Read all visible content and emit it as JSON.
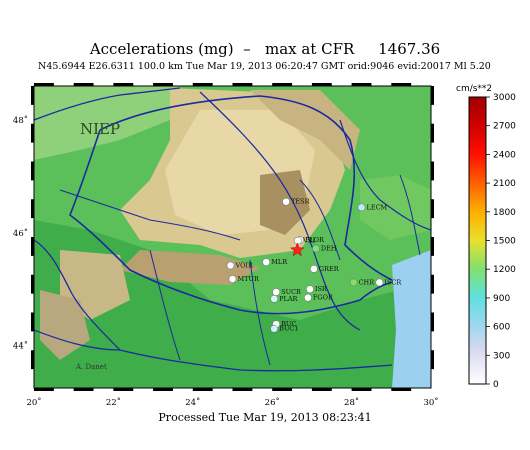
{
  "header": {
    "title": "Accelerations (mg)  –   max at CFR     1467.36",
    "subtitle": "N45.6944 E26.6311 100.0 km Tue Mar 19, 2013 06:20:47 GMT   orid:9046  evid:20017  Ml 5.20",
    "processed": "Processed  Tue Mar 19, 2013 08:23:41"
  },
  "map": {
    "logo_text": "NIEP",
    "corner_credit": "A. Danet",
    "x_ticks": [
      "20˚",
      "22˚",
      "24˚",
      "26˚",
      "28˚",
      "30˚"
    ],
    "y_ticks": [
      "48˚",
      "46˚",
      "44˚"
    ],
    "epicenter": {
      "lon": 26.6311,
      "lat": 45.6944,
      "color": "#ff2020"
    },
    "stations": [
      {
        "name": "TESR",
        "lon": 26.35,
        "lat": 46.55,
        "color": "#ffffff"
      },
      {
        "name": "LECM",
        "lon": 28.25,
        "lat": 46.45,
        "color": "#bfe8ff"
      },
      {
        "name": "PLOR",
        "lon": 26.7,
        "lat": 45.87,
        "color": "#ffffff"
      },
      {
        "name": "VRI",
        "lon": 26.65,
        "lat": 45.86,
        "color": "#ffffff"
      },
      {
        "name": "DEH",
        "lon": 27.1,
        "lat": 45.72,
        "color": "#80e080"
      },
      {
        "name": "VOIR",
        "lon": 24.95,
        "lat": 45.42,
        "color": "#ffffff"
      },
      {
        "name": "MLR",
        "lon": 25.85,
        "lat": 45.48,
        "color": "#ffffff"
      },
      {
        "name": "GRER",
        "lon": 27.05,
        "lat": 45.36,
        "color": "#ffffff"
      },
      {
        "name": "MTUR",
        "lon": 25.0,
        "lat": 45.18,
        "color": "#ffffff"
      },
      {
        "name": "ISR",
        "lon": 26.95,
        "lat": 45.0,
        "color": "#ffffff"
      },
      {
        "name": "SUCR",
        "lon": 26.1,
        "lat": 44.95,
        "color": "#ffffff"
      },
      {
        "name": "PLAR",
        "lon": 26.05,
        "lat": 44.83,
        "color": "#d8f4ff"
      },
      {
        "name": "FGOR",
        "lon": 26.9,
        "lat": 44.85,
        "color": "#ffffff"
      },
      {
        "name": "CHR",
        "lon": 28.05,
        "lat": 45.12,
        "color": "#88dd66"
      },
      {
        "name": "ISCR",
        "lon": 28.7,
        "lat": 45.12,
        "color": "#ffffff"
      },
      {
        "name": "BUC",
        "lon": 26.1,
        "lat": 44.38,
        "color": "#ffffff"
      },
      {
        "name": "BUC1",
        "lon": 26.05,
        "lat": 44.3,
        "color": "#d0f0ff"
      }
    ]
  },
  "colorbar": {
    "unit": "cm/s**2",
    "ticks": [
      "3000",
      "2700",
      "2400",
      "2100",
      "1800",
      "1500",
      "1200",
      "900",
      "600",
      "300",
      "0"
    ]
  }
}
